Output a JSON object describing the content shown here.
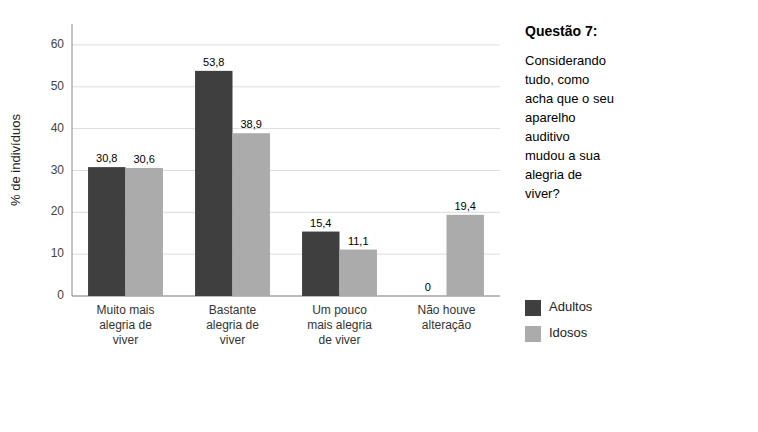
{
  "chart_data": {
    "type": "bar",
    "categories": [
      "Muito mais\nalegria de\nviver",
      "Bastante\nalegria de\nviver",
      "Um pouco\nmais alegria\nde viver",
      "Não houve\nalteração"
    ],
    "series": [
      {
        "name": "Adultos",
        "color": "#3f3f3f",
        "values": [
          30.8,
          53.8,
          15.4,
          0
        ],
        "value_labels": [
          "30,8",
          "53,8",
          "15,4",
          "0"
        ]
      },
      {
        "name": "Idosos",
        "color": "#ababab",
        "values": [
          30.6,
          38.9,
          11.1,
          19.4
        ],
        "value_labels": [
          "30,6",
          "38,9",
          "11,1",
          "19,4"
        ]
      }
    ],
    "ylabel": "% de indivíduos",
    "ylim": [
      0,
      65
    ],
    "yticks": [
      0,
      10,
      20,
      30,
      40,
      50,
      60
    ],
    "grid": true,
    "data_labels": true,
    "legend": "right",
    "annotations": [
      "Questão 7:",
      "Considerando\ntudo, como\nacha que o seu\naparelho\nauditivo\nmudou a sua\nalegria de\nviver?"
    ]
  }
}
